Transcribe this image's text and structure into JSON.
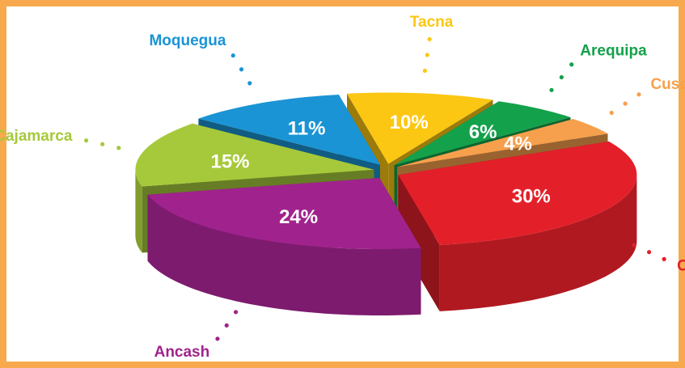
{
  "chart_data": {
    "type": "pie3d",
    "categories": [
      "Tacna",
      "Arequipa",
      "Cusco",
      "Otros",
      "Ancash",
      "Cajamarca",
      "Moquegua"
    ],
    "values": [
      10,
      6,
      4,
      30,
      24,
      15,
      11
    ],
    "value_labels": [
      "10%",
      "6%",
      "4%",
      "30%",
      "24%",
      "15%",
      "11%"
    ],
    "colors": [
      "#fcc712",
      "#14a14b",
      "#f6a04d",
      "#e3202a",
      "#a0238d",
      "#a6c93b",
      "#1a94d4"
    ]
  }
}
